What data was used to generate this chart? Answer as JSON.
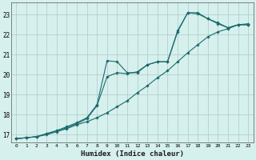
{
  "xlabel": "Humidex (Indice chaleur)",
  "bg_color": "#d6f0ee",
  "grid_color": "#b0c8c8",
  "line_color": "#1a6b6b",
  "xlim": [
    -0.5,
    23.5
  ],
  "ylim": [
    16.6,
    23.6
  ],
  "yticks": [
    17,
    18,
    19,
    20,
    21,
    22,
    23
  ],
  "xticks": [
    0,
    1,
    2,
    3,
    4,
    5,
    6,
    7,
    8,
    9,
    10,
    11,
    12,
    13,
    14,
    15,
    16,
    17,
    18,
    19,
    20,
    21,
    22,
    23
  ],
  "line1_x": [
    0,
    1,
    2,
    3,
    4,
    5,
    6,
    7,
    8,
    9,
    10,
    11,
    12,
    13,
    14,
    15,
    16,
    17,
    18,
    19,
    20,
    21,
    22,
    23
  ],
  "line1_y": [
    16.8,
    16.85,
    16.9,
    17.0,
    17.15,
    17.3,
    17.5,
    17.65,
    17.85,
    18.1,
    18.4,
    18.7,
    19.1,
    19.45,
    19.85,
    20.2,
    20.65,
    21.1,
    21.5,
    21.9,
    22.15,
    22.3,
    22.5,
    22.55
  ],
  "line2_x": [
    0,
    1,
    2,
    3,
    4,
    5,
    6,
    7,
    8,
    9,
    10,
    11,
    12,
    13,
    14,
    15,
    16,
    17,
    18,
    19,
    20,
    21,
    22,
    23
  ],
  "line2_y": [
    16.8,
    16.85,
    16.9,
    17.05,
    17.2,
    17.35,
    17.55,
    17.8,
    18.45,
    19.9,
    20.1,
    20.05,
    20.15,
    20.5,
    20.65,
    20.65,
    22.2,
    23.1,
    23.05,
    22.8,
    22.55,
    22.35,
    22.5,
    22.5
  ],
  "line3_x": [
    0,
    1,
    2,
    3,
    4,
    5,
    6,
    7,
    8,
    9,
    10,
    11,
    12,
    13,
    14,
    15,
    16,
    17,
    18,
    19,
    20,
    21,
    22,
    23
  ],
  "line3_y": [
    16.8,
    16.85,
    16.9,
    17.05,
    17.2,
    17.4,
    17.6,
    17.85,
    18.5,
    20.7,
    20.65,
    20.1,
    20.1,
    20.5,
    20.65,
    20.65,
    22.15,
    23.1,
    23.1,
    22.8,
    22.6,
    22.35,
    22.5,
    22.5
  ]
}
